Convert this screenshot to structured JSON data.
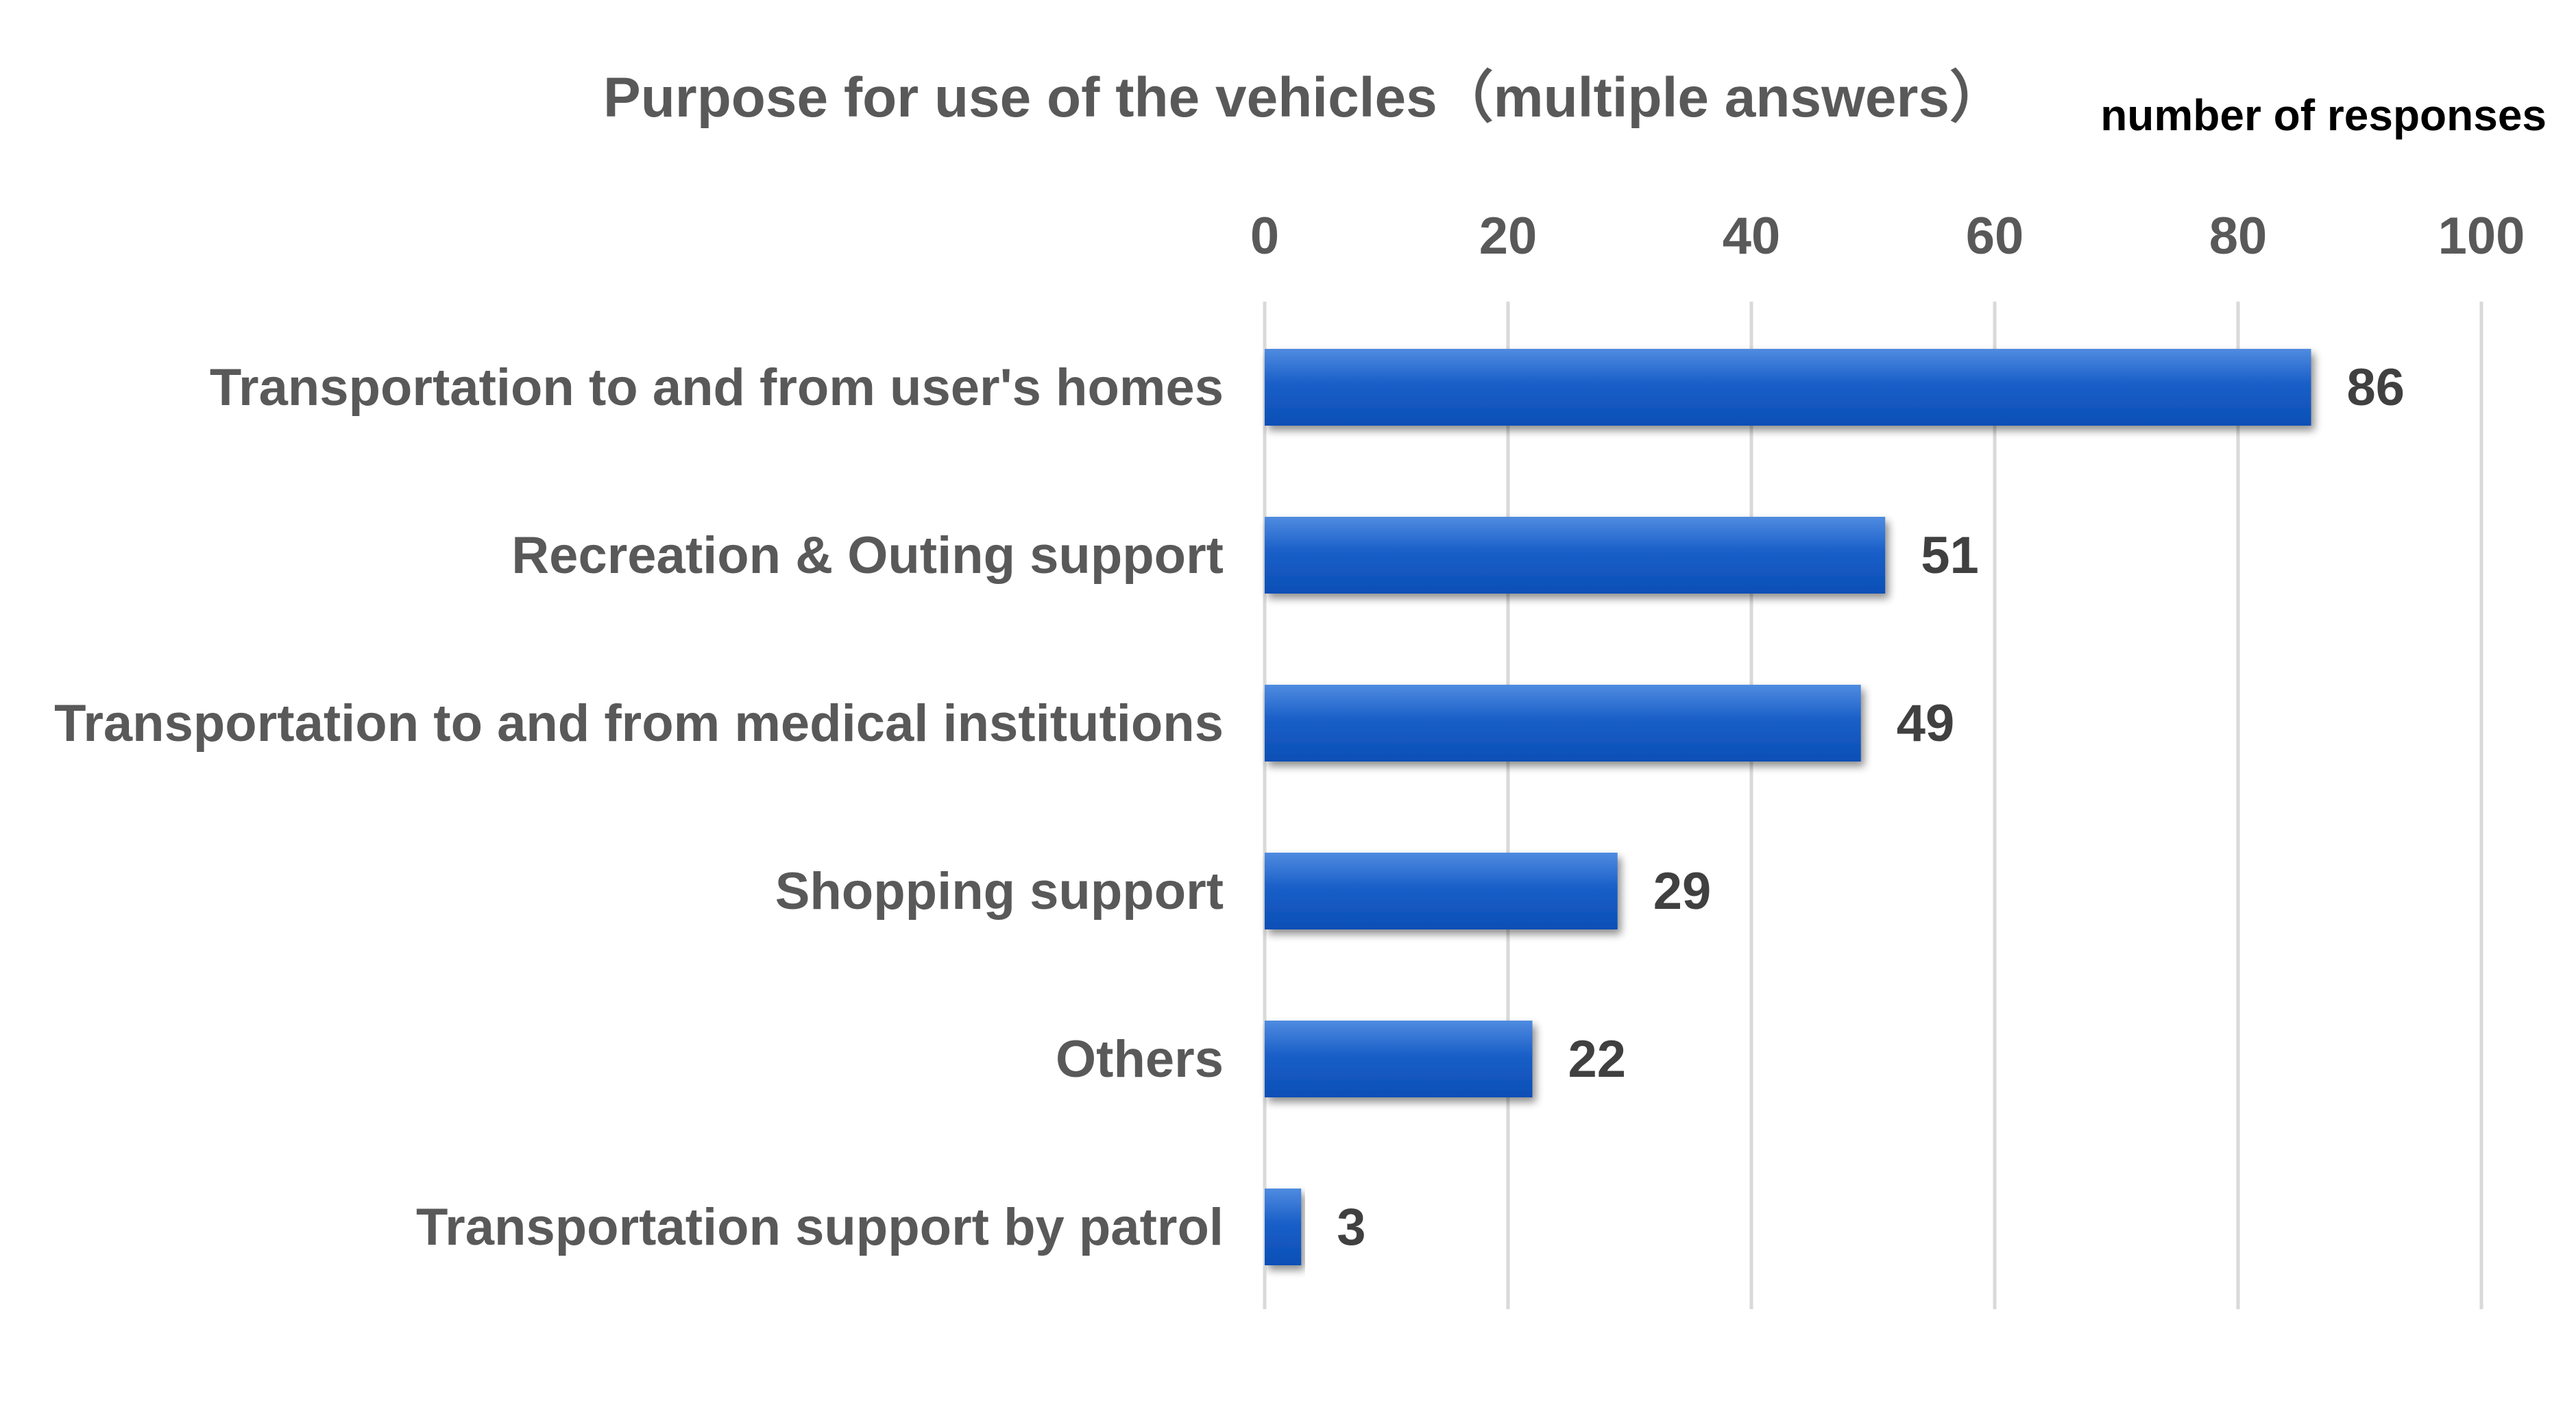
{
  "chart_data": {
    "type": "bar",
    "orientation": "horizontal",
    "title": "Purpose for use of the vehicles（multiple answers）",
    "unit_label": "number of responses",
    "categories": [
      "Transportation to and from user's homes",
      "Recreation & Outing support",
      "Transportation to and from medical institutions",
      "Shopping support",
      "Others",
      "Transportation support by patrol"
    ],
    "values": [
      86,
      51,
      49,
      29,
      22,
      3
    ],
    "xlim": [
      0,
      100
    ],
    "ticks": [
      "0",
      "20",
      "40",
      "60",
      "80",
      "100"
    ],
    "tick_values": [
      0,
      20,
      40,
      60,
      80,
      100
    ],
    "axis_position": "top",
    "grid": true,
    "data_labels": true,
    "bar_color": "#1a5fc8"
  }
}
